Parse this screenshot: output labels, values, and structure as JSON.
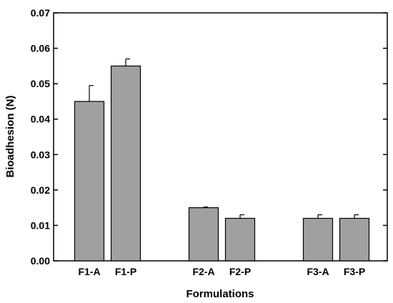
{
  "chart_data": {
    "type": "bar",
    "title": "",
    "xlabel": "Formulations",
    "ylabel": "Bioadhesion (N)",
    "categories": [
      "F1-A",
      "F1-P",
      "F2-A",
      "F2-P",
      "F3-A",
      "F3-P"
    ],
    "groups": [
      [
        "F1-A",
        "F1-P"
      ],
      [
        "F2-A",
        "F2-P"
      ],
      [
        "F3-A",
        "F3-P"
      ]
    ],
    "values": [
      0.045,
      0.055,
      0.015,
      0.012,
      0.012,
      0.012
    ],
    "errors": [
      0.0045,
      0.002,
      0.0002,
      0.001,
      0.001,
      0.001
    ],
    "ylim": [
      0,
      0.07
    ],
    "yticks": [
      "0.00",
      "0.01",
      "0.02",
      "0.03",
      "0.04",
      "0.05",
      "0.06",
      "0.07"
    ],
    "bar_color": "#a0a0a0",
    "grid": false,
    "legend": "none"
  }
}
